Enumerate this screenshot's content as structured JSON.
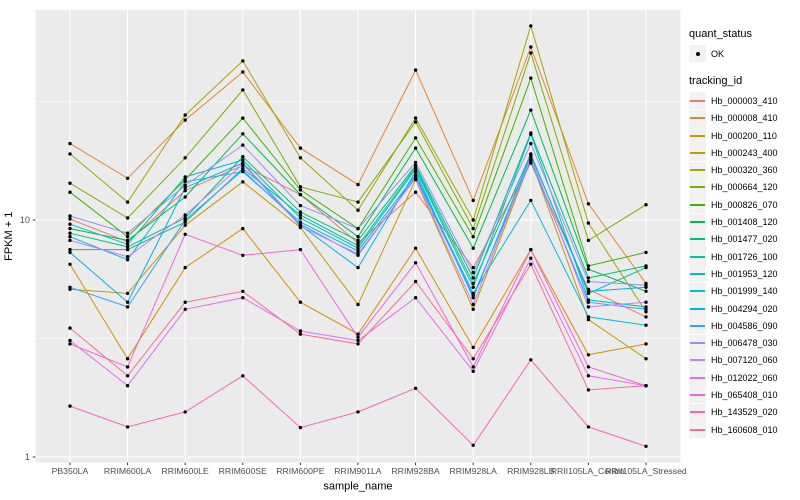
{
  "legend": {
    "quant_status_title": "quant_status",
    "quant_status_items": [
      {
        "label": "OK"
      }
    ],
    "tracking_id_title": "tracking_id"
  },
  "colors": {
    "panel_background": "#EBEBEB",
    "gridline": "#FFFFFF",
    "axis_text": "#4D4D4D",
    "tick_mark": "#333333",
    "point": "#000000",
    "legend_key_background": "#F2F2F2"
  },
  "chart_data": {
    "type": "line",
    "title": "",
    "xlabel": "sample_name",
    "ylabel": "FPKM + 1",
    "y_scale": "log10",
    "y_ticks": [
      1,
      10
    ],
    "y_tick_labels": [
      "1",
      "10"
    ],
    "y_minor_gridlines": [
      3.1623,
      31.623
    ],
    "ylim": [
      1,
      77
    ],
    "grid": true,
    "legend_position": "right",
    "point_marker": "black dot on every data point",
    "x_categories": [
      "PB350LA",
      "RRIM600LA",
      "RRIM600LE",
      "RRIM600SE",
      "RRIM600PE",
      "RRIM901LA",
      "RRIM928BA",
      "RRIM928LA",
      "RRIM928LB",
      "RRII105LA_Control",
      "RRII105LA_Stressed"
    ],
    "series": [
      {
        "name": "Hb_000003_410",
        "color": "#F8766D",
        "values": [
          10.1,
          8.1,
          13.3,
          17.0,
          12.8,
          8.0,
          13.1,
          6.3,
          17.4,
          5.1,
          3.9
        ]
      },
      {
        "name": "Hb_000008_410",
        "color": "#EA8331",
        "values": [
          21.0,
          15.0,
          26.4,
          42.1,
          20.1,
          14.1,
          42.9,
          12.1,
          53.7,
          11.7,
          5.4
        ]
      },
      {
        "name": "Hb_000200_110",
        "color": "#D89000",
        "values": [
          6.5,
          2.6,
          6.3,
          9.2,
          4.5,
          3.3,
          7.6,
          2.9,
          7.5,
          2.7,
          3.0
        ]
      },
      {
        "name": "Hb_000243_400",
        "color": "#C09B00",
        "values": [
          5.1,
          4.9,
          9.5,
          14.5,
          9.3,
          4.4,
          14.8,
          4.2,
          18.0,
          3.8,
          2.6
        ]
      },
      {
        "name": "Hb_000320_360",
        "color": "#A3A500",
        "values": [
          19.0,
          11.9,
          27.7,
          46.9,
          18.3,
          11.0,
          26.9,
          10.0,
          65.9,
          9.7,
          4.1
        ]
      },
      {
        "name": "Hb_000664_120",
        "color": "#7CAE00",
        "values": [
          14.3,
          10.2,
          18.3,
          35.4,
          13.8,
          11.9,
          25.9,
          9.2,
          50.7,
          8.2,
          11.6
        ]
      },
      {
        "name": "Hb_000826_070",
        "color": "#39B600",
        "values": [
          13.1,
          8.5,
          14.8,
          26.9,
          13.4,
          9.2,
          22.2,
          8.5,
          39.7,
          6.4,
          7.3
        ]
      },
      {
        "name": "Hb_001408_120",
        "color": "#00BB4E",
        "values": [
          9.2,
          8.2,
          12.5,
          23.1,
          12.8,
          8.5,
          20.1,
          7.6,
          29.1,
          6.2,
          5.0
        ]
      },
      {
        "name": "Hb_001477_020",
        "color": "#00BF7D",
        "values": [
          8.8,
          7.7,
          10.2,
          18.5,
          10.8,
          8.2,
          17.0,
          5.7,
          23.3,
          5.7,
          6.4
        ]
      },
      {
        "name": "Hb_001726_100",
        "color": "#00C1A3",
        "values": [
          7.5,
          7.5,
          9.8,
          16.5,
          10.5,
          7.8,
          16.7,
          5.4,
          19.0,
          4.9,
          6.3
        ]
      },
      {
        "name": "Hb_001953_120",
        "color": "#00BFC4",
        "values": [
          9.6,
          7.9,
          15.2,
          17.9,
          10.2,
          7.6,
          16.4,
          5.2,
          23.0,
          4.6,
          4.3
        ]
      },
      {
        "name": "Hb_001999_140",
        "color": "#00BAE0",
        "values": [
          8.5,
          6.8,
          14.5,
          16.0,
          9.8,
          7.4,
          15.5,
          4.9,
          12.1,
          3.9,
          3.6
        ]
      },
      {
        "name": "Hb_004294_020",
        "color": "#00B0F6",
        "values": [
          7.3,
          4.5,
          13.7,
          17.4,
          9.5,
          6.3,
          16.0,
          4.7,
          18.8,
          5.0,
          5.2
        ]
      },
      {
        "name": "Hb_004586_090",
        "color": "#35A2FF",
        "values": [
          5.2,
          4.3,
          10.0,
          16.2,
          9.6,
          7.1,
          15.2,
          4.8,
          17.8,
          4.5,
          4.2
        ]
      },
      {
        "name": "Hb_006478_030",
        "color": "#9590FF",
        "values": [
          10.4,
          8.8,
          14.0,
          20.7,
          11.5,
          9.2,
          17.5,
          6.0,
          21.0,
          5.5,
          5.3
        ]
      },
      {
        "name": "Hb_007120_060",
        "color": "#C77CFF",
        "values": [
          8.2,
          7.0,
          10.5,
          17.2,
          9.4,
          7.2,
          15.0,
          4.4,
          18.5,
          4.3,
          4.5
        ]
      },
      {
        "name": "Hb_012022_060",
        "color": "#E76BF3",
        "values": [
          3.1,
          2.0,
          4.2,
          4.7,
          3.4,
          3.1,
          4.7,
          2.3,
          6.9,
          2.2,
          2.0
        ]
      },
      {
        "name": "Hb_065408_010",
        "color": "#FA62DB",
        "values": [
          3.0,
          2.4,
          8.7,
          7.1,
          7.5,
          3.2,
          6.6,
          2.4,
          7.5,
          2.4,
          2.0
        ]
      },
      {
        "name": "Hb_143529_020",
        "color": "#FF62BC",
        "values": [
          1.64,
          1.34,
          1.55,
          2.2,
          1.33,
          1.55,
          1.95,
          1.12,
          2.57,
          1.34,
          1.11
        ]
      },
      {
        "name": "Hb_160608_010",
        "color": "#FF6A98",
        "values": [
          3.5,
          2.2,
          4.5,
          5.0,
          3.3,
          3.0,
          5.5,
          2.6,
          6.5,
          1.92,
          2.0
        ]
      }
    ]
  }
}
